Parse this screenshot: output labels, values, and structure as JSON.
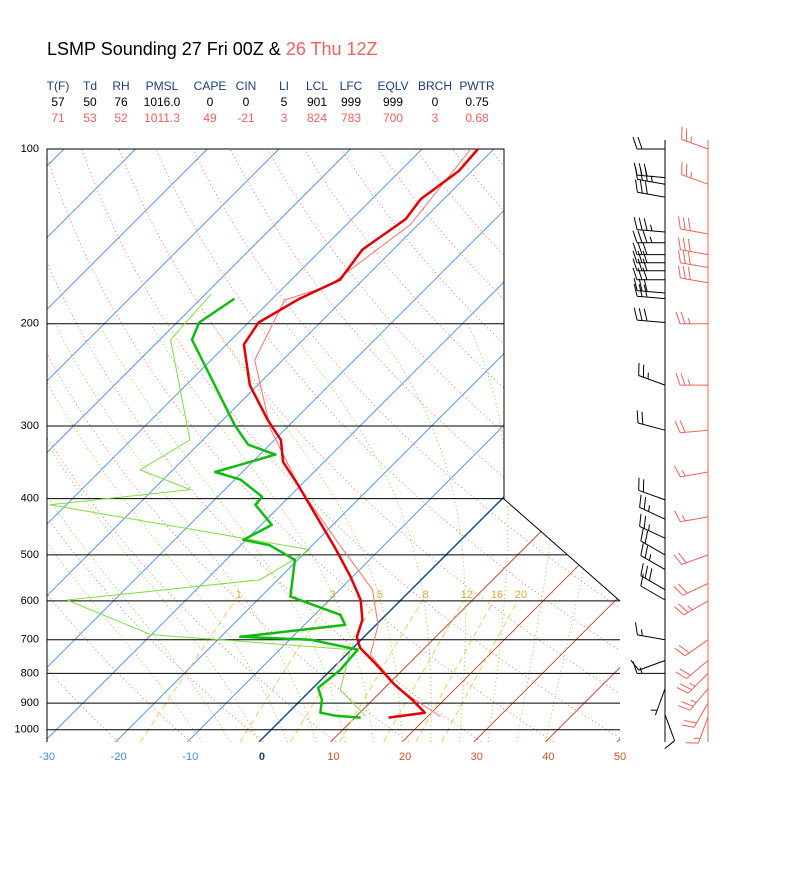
{
  "chart_data": {
    "type": "skewt",
    "title": "LSMP Sounding 27 Fri 00Z & ",
    "subtitle": "26 Thu 12Z",
    "subtitle_color": "#f06060",
    "table": {
      "header": [
        "T(F)",
        "Td",
        "RH",
        "PMSL",
        "CAPE",
        "CIN",
        "LI",
        "LCL",
        "LFC",
        "EQLV",
        "BRCH",
        "PWTR"
      ],
      "rows": [
        {
          "color": "#000000",
          "cells": [
            "57",
            "50",
            "76",
            "1016.0",
            "0",
            "0",
            "5",
            "901",
            "999",
            "999",
            "0",
            "0.75"
          ]
        },
        {
          "color": "#f06060",
          "cells": [
            "71",
            "53",
            "52",
            "1011.3",
            "49",
            "-21",
            "3",
            "824",
            "783",
            "700",
            "3",
            "0.68"
          ]
        }
      ]
    },
    "ylim": [
      1050,
      100
    ],
    "yticks": [
      100,
      200,
      300,
      400,
      500,
      600,
      700,
      800,
      900,
      1000
    ],
    "log_y": true,
    "xlim": [
      -30,
      50
    ],
    "xticks": [
      -30,
      -20,
      -10,
      0,
      10,
      20,
      30,
      40,
      50
    ],
    "mixing_ratio_labels": [
      1,
      3,
      5,
      8,
      12,
      16,
      20
    ],
    "series": [
      {
        "color": "#ff7070",
        "width": 1,
        "x": [
          21.8,
          12.4,
          3.4,
          0.3,
          -5.4,
          -16.2,
          -29.4,
          -42.0,
          -53.9,
          -58.1,
          -53.9,
          -51.1,
          -53.2
        ],
        "y": [
          949,
          854,
          743,
          660,
          574,
          481,
          386,
          304,
          231,
          182,
          172,
          135,
          100
        ]
      },
      {
        "color": "#80dd40",
        "width": 1,
        "x": [
          11.2,
          4.1,
          -0.1,
          -30.1,
          -46.6,
          -22.5,
          -19.7,
          -62.3,
          -44.8,
          -54.6,
          -51.8,
          -68.5,
          -69.2
        ],
        "y": [
          946,
          854,
          728,
          686,
          598,
          552,
          490,
          410,
          386,
          357,
          317,
          213,
          178
        ]
      },
      {
        "color": "#e00000",
        "width": 2.5,
        "x": [
          14.7,
          19.1,
          15.5,
          11.0,
          4.3,
          1.0,
          -1.0,
          -2.6,
          -5.6,
          -10.3,
          -16.5,
          -22.7,
          -30.4,
          -35.7,
          -39.1,
          -43.7,
          -51.1,
          -57.6,
          -58.6,
          -56.2,
          -53.2,
          -54.3,
          -52.5,
          -53.2,
          -51.8,
          -52.2
        ],
        "y": [
          953,
          935,
          888,
          837,
          758,
          723,
          692,
          647,
          598,
          545,
          486,
          435,
          379,
          346,
          317,
          293,
          255,
          217,
          199,
          181,
          168,
          149,
          132,
          122,
          109,
          100
        ]
      },
      {
        "color": "#10bb10",
        "width": 2.5,
        "x": [
          10.8,
          7.0,
          4.5,
          2.9,
          0.7,
          1.3,
          0.9,
          -7.1,
          -17.3,
          -4.3,
          -6.4,
          -15.9,
          -20.4,
          -26.0,
          -30.4,
          -28.5,
          -33.6,
          -33.8,
          -39.2,
          -43.8,
          -37.8,
          -43.0,
          -47.6,
          -58.1,
          -65.5,
          -66.9,
          -65.3
        ],
        "y": [
          953,
          946,
          935,
          888,
          847,
          788,
          728,
          700,
          692,
          660,
          634,
          590,
          510,
          481,
          471,
          444,
          410,
          397,
          371,
          360,
          336,
          323,
          299,
          245,
          213,
          199,
          181
        ]
      }
    ],
    "winds": [
      {
        "color": "#000000",
        "pressure": [
          100,
          112,
          115,
          121,
          139,
          145,
          152,
          157,
          162,
          168,
          177,
          181,
          199,
          255,
          305,
          402,
          434,
          468,
          500,
          530,
          574,
          598,
          700,
          760,
          800,
          850,
          941
        ],
        "direction": [
          270,
          275,
          280,
          280,
          275,
          270,
          270,
          270,
          270,
          270,
          275,
          275,
          275,
          290,
          285,
          290,
          295,
          295,
          300,
          300,
          300,
          300,
          280,
          250,
          270,
          200,
          160
        ],
        "speed": [
          20,
          30,
          35,
          30,
          35,
          35,
          30,
          30,
          30,
          30,
          30,
          30,
          30,
          25,
          20,
          20,
          25,
          25,
          20,
          25,
          30,
          10,
          15,
          10,
          15,
          5,
          10
        ]
      },
      {
        "color": "#f06060",
        "pressure": [
          100,
          115,
          140,
          152,
          160,
          170,
          200,
          255,
          305,
          360,
          430,
          500,
          560,
          600,
          700,
          760,
          800,
          850,
          900,
          950
        ],
        "direction": [
          290,
          290,
          280,
          280,
          280,
          280,
          270,
          270,
          265,
          260,
          260,
          250,
          245,
          240,
          235,
          230,
          225,
          220,
          210,
          200
        ],
        "speed": [
          25,
          25,
          30,
          30,
          30,
          30,
          25,
          25,
          20,
          15,
          15,
          20,
          20,
          25,
          20,
          20,
          25,
          25,
          20,
          15
        ]
      }
    ]
  }
}
